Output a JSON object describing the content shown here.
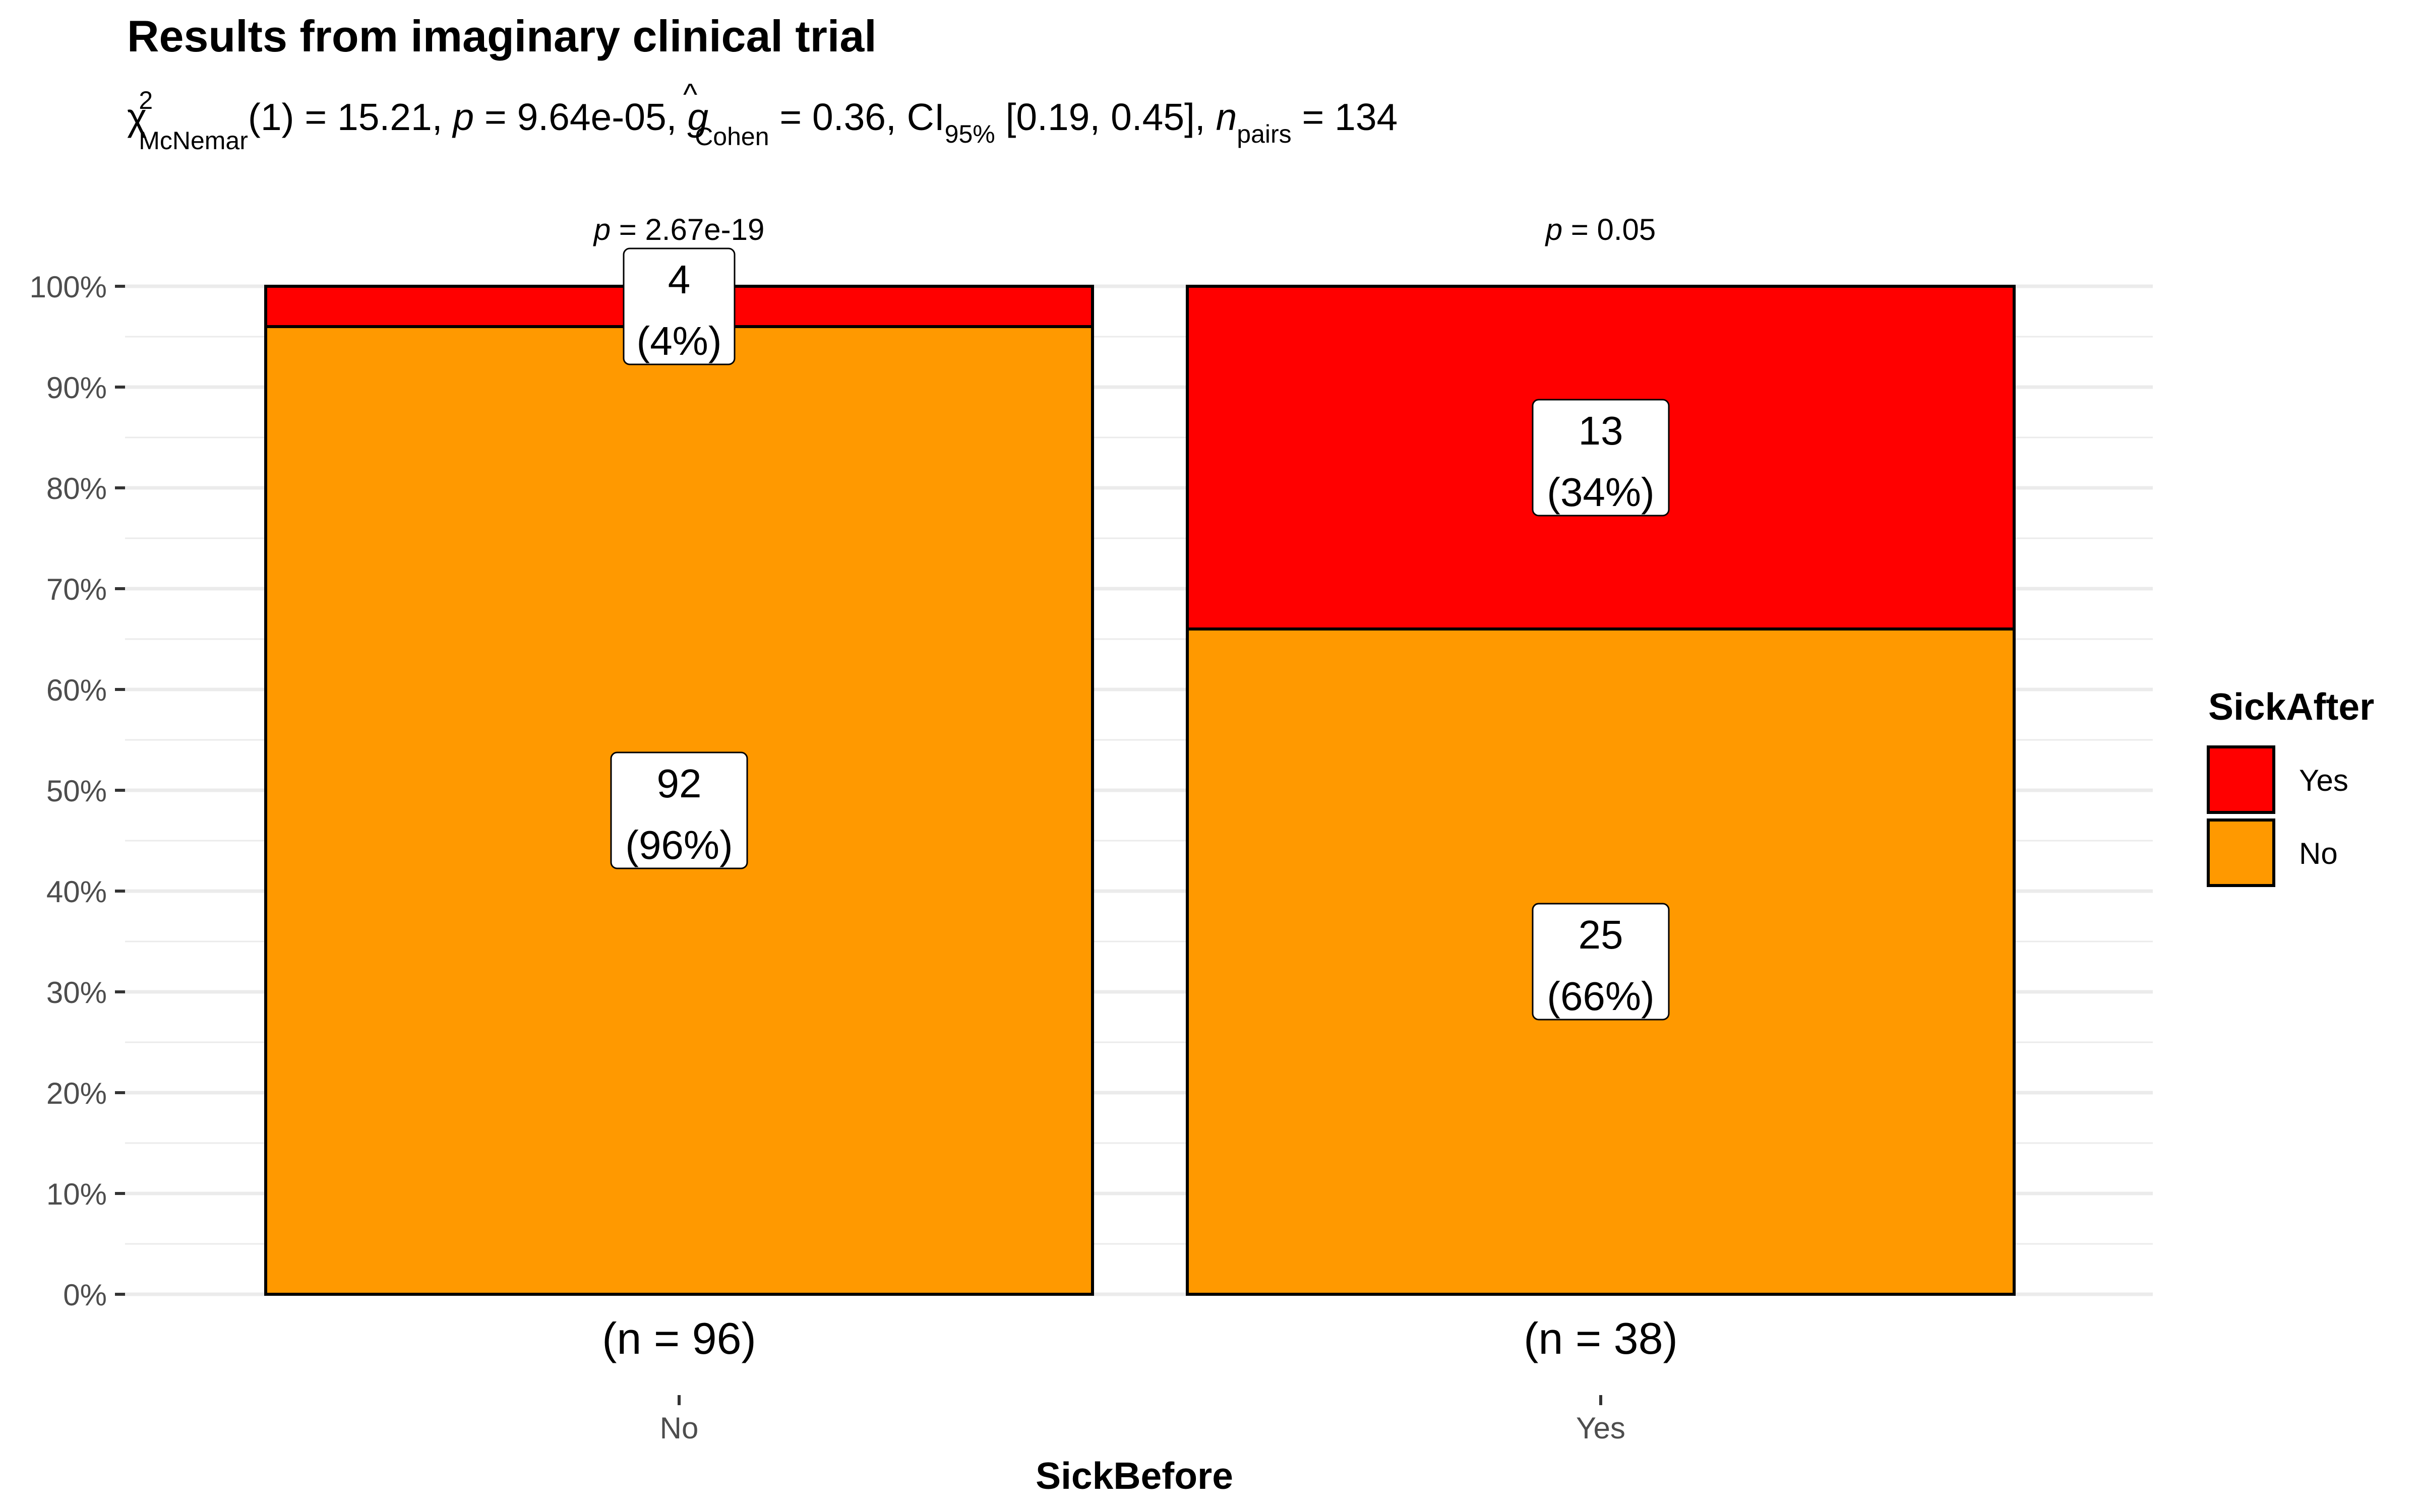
{
  "chart_data": {
    "type": "bar",
    "stacked": true,
    "percent": true,
    "title": "Results from imaginary clinical trial",
    "subtitle": {
      "chi_symbol": "χ",
      "chi_sup": "2",
      "chi_sub": "McNemar",
      "df": "(1) = 15.21, ",
      "p_sym": "p",
      "p_val": " = 9.64e-05, ",
      "g_sym": "g",
      "g_hat": "^",
      "g_sub": "Cohen",
      "g_val": " = 0.36, CI",
      "ci_sub": "95%",
      "ci_val": " [0.19, 0.45], ",
      "n_sym": "n",
      "n_sub": "pairs",
      "n_val": " = 134"
    },
    "xlabel": "SickBefore",
    "ylabel": "",
    "ylim": [
      0,
      100
    ],
    "yticks": [
      "0%",
      "10%",
      "20%",
      "30%",
      "40%",
      "50%",
      "60%",
      "70%",
      "80%",
      "90%",
      "100%"
    ],
    "categories": [
      "No",
      "Yes"
    ],
    "n_labels": [
      "(n = 96)",
      "(n = 38)"
    ],
    "p_labels": [
      {
        "sym": "p",
        "val": " = 2.67e-19"
      },
      {
        "sym": "p",
        "val": " = 0.05"
      }
    ],
    "series": [
      {
        "name": "No",
        "color": "#FF9900",
        "counts": [
          92,
          25
        ],
        "values": [
          96,
          66
        ],
        "pct_labels": [
          "(96%)",
          "(66%)"
        ]
      },
      {
        "name": "Yes",
        "color": "#FF0000",
        "counts": [
          4,
          13
        ],
        "values": [
          4,
          34
        ],
        "pct_labels": [
          "(4%)",
          "(34%)"
        ]
      }
    ],
    "legend": {
      "title": "SickAfter",
      "position": "right",
      "items": [
        {
          "label": "Yes",
          "color": "#FF0000"
        },
        {
          "label": "No",
          "color": "#FF9900"
        }
      ]
    }
  }
}
